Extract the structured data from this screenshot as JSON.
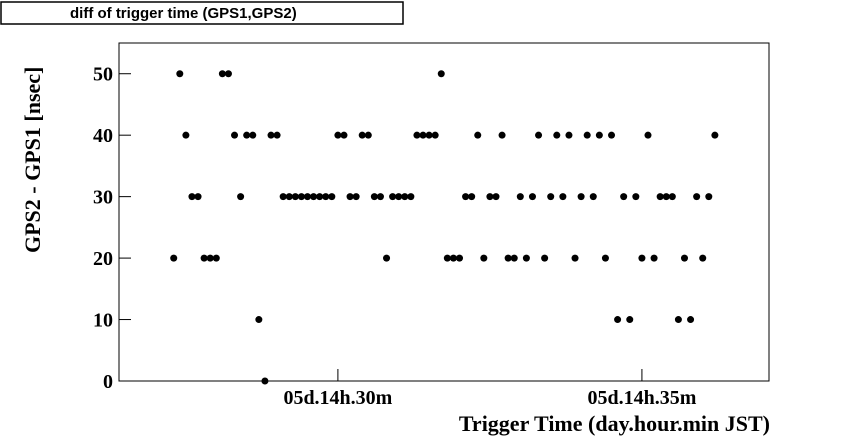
{
  "chart_data": {
    "type": "scatter",
    "title": "diff of trigger time (GPS1,GPS2)",
    "x_label": "Trigger Time (day.hour.min JST)",
    "y_label": "GPS2 - GPS1 [nsec]",
    "color": "#000000",
    "x": [
      27.3,
      27.4,
      27.5,
      27.6,
      27.7,
      27.8,
      27.9,
      28.0,
      28.1,
      28.2,
      28.3,
      28.4,
      28.5,
      28.6,
      28.7,
      28.8,
      28.9,
      29.0,
      29.1,
      29.2,
      29.3,
      29.4,
      29.5,
      29.6,
      29.7,
      29.8,
      29.9,
      30.0,
      30.1,
      30.2,
      30.3,
      30.4,
      30.5,
      30.6,
      30.7,
      30.8,
      30.9,
      31.0,
      31.1,
      31.2,
      31.3,
      31.4,
      31.5,
      31.6,
      31.7,
      31.8,
      31.9,
      32.0,
      32.1,
      32.2,
      32.3,
      32.4,
      32.5,
      32.6,
      32.7,
      32.8,
      32.9,
      33.0,
      33.1,
      33.2,
      33.3,
      33.4,
      33.5,
      33.6,
      33.7,
      33.8,
      33.9,
      34.0,
      34.1,
      34.2,
      34.3,
      34.4,
      34.5,
      34.6,
      34.7,
      34.8,
      34.9,
      35.0,
      35.1,
      35.2,
      35.3,
      35.4,
      35.5,
      35.6,
      35.7,
      35.8,
      35.9,
      36.0,
      36.1,
      36.2
    ],
    "values": [
      20,
      50,
      40,
      30,
      30,
      20,
      20,
      20,
      50,
      50,
      40,
      30,
      40,
      40,
      10,
      0,
      40,
      40,
      30,
      30,
      30,
      30,
      30,
      30,
      30,
      30,
      30,
      40,
      40,
      30,
      30,
      40,
      40,
      30,
      30,
      20,
      30,
      30,
      30,
      30,
      40,
      40,
      40,
      40,
      50,
      20,
      20,
      20,
      30,
      30,
      40,
      20,
      30,
      30,
      40,
      20,
      20,
      30,
      20,
      30,
      40,
      20,
      30,
      40,
      30,
      40,
      20,
      30,
      40,
      30,
      40,
      20,
      40,
      10,
      30,
      10,
      30,
      20,
      40,
      20,
      30,
      30,
      30,
      10,
      20,
      10,
      30,
      20,
      30,
      40
    ],
    "xlim": [
      26.4,
      37.09
    ],
    "ylim": [
      0,
      55
    ],
    "xticks": [
      {
        "value": 30,
        "label": "05d.14h.30m"
      },
      {
        "value": 35,
        "label": "05d.14h.35m"
      }
    ],
    "yticks": [
      0,
      10,
      20,
      30,
      40,
      50
    ]
  }
}
